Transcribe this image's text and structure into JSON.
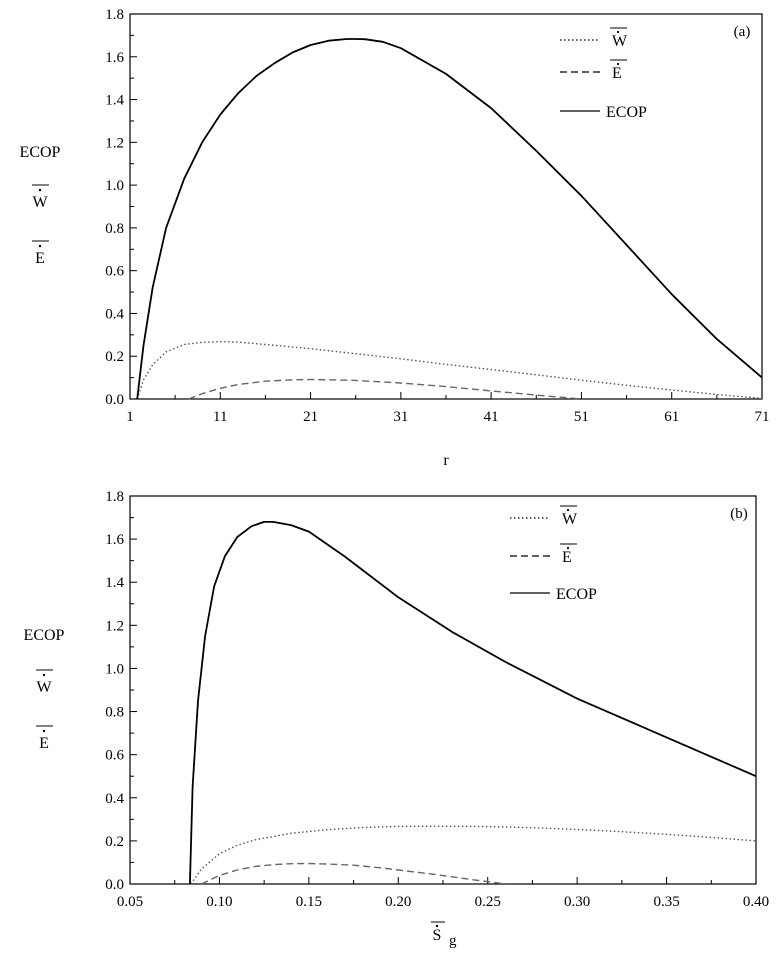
{
  "chart_data": [
    {
      "type": "line",
      "panel_label": "(a)",
      "xlabel": "r",
      "ylabel_lines": [
        "ECOP",
        "W",
        "E"
      ],
      "xlim": [
        1,
        71
      ],
      "ylim": [
        0,
        1.8
      ],
      "xticks": [
        1,
        11,
        21,
        31,
        41,
        51,
        61,
        71
      ],
      "yticks": [
        0.0,
        0.2,
        0.4,
        0.6,
        0.8,
        1.0,
        1.2,
        1.4,
        1.6,
        1.8
      ],
      "ytick_labels": [
        "0.0",
        "0.2",
        "0.4",
        "0.6",
        "0.8",
        "1.0",
        "1.2",
        "1.4",
        "1.6",
        "1.8"
      ],
      "legend_position": "top-right",
      "legend": [
        {
          "label": "W",
          "style": "dotted"
        },
        {
          "label": "E",
          "style": "dashed"
        },
        {
          "label": "ECOP",
          "style": "solid"
        }
      ],
      "series": [
        {
          "name": "W",
          "style": "dotted",
          "color": "#555555",
          "x": [
            1.8,
            2.5,
            3.5,
            5,
            7,
            9,
            11,
            13,
            16,
            21,
            26,
            31,
            36,
            41,
            46,
            51,
            56,
            61,
            66,
            71
          ],
          "y": [
            0.0,
            0.09,
            0.16,
            0.22,
            0.255,
            0.265,
            0.268,
            0.266,
            0.255,
            0.235,
            0.212,
            0.188,
            0.162,
            0.138,
            0.113,
            0.088,
            0.064,
            0.042,
            0.021,
            0.003
          ]
        },
        {
          "name": "E",
          "style": "dashed",
          "color": "#666666",
          "x": [
            7.5,
            9,
            11,
            13,
            16,
            19,
            21,
            23,
            26,
            31,
            36,
            41,
            46,
            51
          ],
          "y": [
            0.0,
            0.025,
            0.05,
            0.068,
            0.083,
            0.09,
            0.091,
            0.09,
            0.087,
            0.075,
            0.058,
            0.038,
            0.018,
            0.0
          ]
        },
        {
          "name": "ECOP",
          "style": "solid",
          "color": "#000000",
          "x": [
            1.8,
            2.5,
            3.5,
            5,
            7,
            9,
            11,
            13,
            15,
            17,
            19,
            21,
            23,
            25,
            26,
            27,
            29,
            31,
            36,
            41,
            46,
            51,
            56,
            61,
            66,
            71
          ],
          "y": [
            0.0,
            0.25,
            0.52,
            0.8,
            1.03,
            1.2,
            1.33,
            1.43,
            1.51,
            1.57,
            1.62,
            1.655,
            1.675,
            1.683,
            1.683,
            1.682,
            1.67,
            1.64,
            1.52,
            1.36,
            1.16,
            0.95,
            0.72,
            0.49,
            0.28,
            0.1
          ]
        }
      ]
    },
    {
      "type": "line",
      "panel_label": "(b)",
      "xlabel": "S",
      "xlabel_sub": "g",
      "ylabel_lines": [
        "ECOP",
        "W",
        "E"
      ],
      "xlim": [
        0.05,
        0.4
      ],
      "ylim": [
        0,
        1.8
      ],
      "xticks": [
        0.05,
        0.1,
        0.15,
        0.2,
        0.25,
        0.3,
        0.35,
        0.4
      ],
      "xtick_labels": [
        "0.05",
        "0.10",
        "0.15",
        "0.20",
        "0.25",
        "0.30",
        "0.35",
        "0.40"
      ],
      "yticks": [
        0.0,
        0.2,
        0.4,
        0.6,
        0.8,
        1.0,
        1.2,
        1.4,
        1.6,
        1.8
      ],
      "ytick_labels": [
        "0.0",
        "0.2",
        "0.4",
        "0.6",
        "0.8",
        "1.0",
        "1.2",
        "1.4",
        "1.6",
        "1.8"
      ],
      "legend_position": "top-right",
      "legend": [
        {
          "label": "W",
          "style": "dotted"
        },
        {
          "label": "E",
          "style": "dashed"
        },
        {
          "label": "ECOP",
          "style": "solid"
        }
      ],
      "series": [
        {
          "name": "W",
          "style": "dotted",
          "color": "#555555",
          "x": [
            0.084,
            0.09,
            0.1,
            0.11,
            0.12,
            0.14,
            0.16,
            0.18,
            0.2,
            0.22,
            0.24,
            0.26,
            0.28,
            0.3,
            0.32,
            0.34,
            0.36,
            0.38,
            0.4
          ],
          "y": [
            0.0,
            0.07,
            0.14,
            0.18,
            0.205,
            0.235,
            0.252,
            0.262,
            0.267,
            0.268,
            0.267,
            0.265,
            0.26,
            0.253,
            0.245,
            0.235,
            0.225,
            0.213,
            0.2
          ]
        },
        {
          "name": "E",
          "style": "dashed",
          "color": "#666666",
          "x": [
            0.09,
            0.1,
            0.11,
            0.12,
            0.13,
            0.14,
            0.15,
            0.16,
            0.175,
            0.19,
            0.2,
            0.22,
            0.24,
            0.26
          ],
          "y": [
            0.0,
            0.04,
            0.065,
            0.081,
            0.09,
            0.094,
            0.095,
            0.093,
            0.087,
            0.075,
            0.065,
            0.045,
            0.022,
            0.0
          ]
        },
        {
          "name": "ECOP",
          "style": "solid",
          "color": "#000000",
          "x": [
            0.0835,
            0.085,
            0.088,
            0.092,
            0.097,
            0.103,
            0.11,
            0.118,
            0.125,
            0.13,
            0.14,
            0.15,
            0.17,
            0.2,
            0.23,
            0.26,
            0.3,
            0.35,
            0.4
          ],
          "y": [
            0.0,
            0.45,
            0.85,
            1.15,
            1.38,
            1.52,
            1.61,
            1.66,
            1.68,
            1.68,
            1.665,
            1.635,
            1.52,
            1.33,
            1.17,
            1.03,
            0.86,
            0.68,
            0.5
          ]
        }
      ]
    }
  ]
}
